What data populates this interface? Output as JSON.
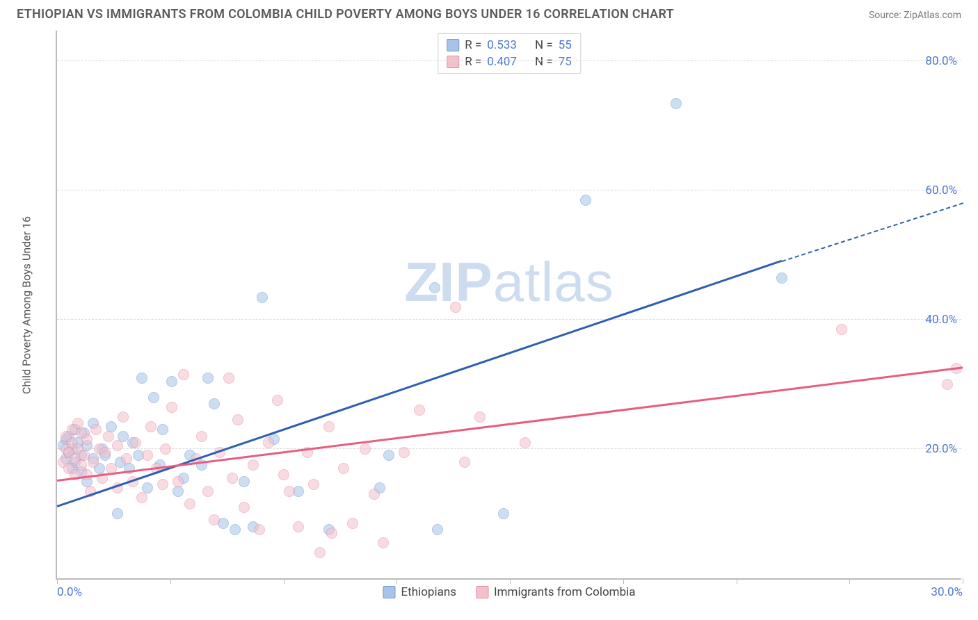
{
  "header": {
    "title": "ETHIOPIAN VS IMMIGRANTS FROM COLOMBIA CHILD POVERTY AMONG BOYS UNDER 16 CORRELATION CHART",
    "source": "Source: ZipAtlas.com"
  },
  "chart": {
    "type": "scatter",
    "y_axis_title": "Child Poverty Among Boys Under 16",
    "xlim": [
      0,
      30
    ],
    "ylim": [
      0,
      85
    ],
    "x_ticks": [
      0,
      3.75,
      7.5,
      11.25,
      15,
      18.75,
      22.5,
      26.25,
      30
    ],
    "x_tick_labels": {
      "0": "0.0%",
      "30": "30.0%"
    },
    "y_gridlines": [
      20,
      40,
      60,
      80
    ],
    "y_tick_labels": {
      "20": "20.0%",
      "40": "40.0%",
      "60": "60.0%",
      "80": "80.0%"
    },
    "background_color": "#ffffff",
    "grid_color": "#d9d9d9",
    "axis_color": "#bbbbbb",
    "tick_label_color": "#4a77d4",
    "tick_label_fontsize": 17,
    "axis_title_color": "#555555",
    "axis_title_fontsize": 16,
    "marker_radius": 8,
    "marker_opacity": 0.55,
    "watermark": "ZIPatlas",
    "series": [
      {
        "name": "Ethiopians",
        "fill": "#a7c4e8",
        "stroke": "#6f9ad0",
        "R": "0.533",
        "N": "55",
        "trend": {
          "color": "#2e5fb3",
          "x1": 0,
          "y1": 11,
          "x2": 24,
          "y2": 49,
          "dash_x2": 30,
          "dash_y2": 58
        },
        "points": [
          [
            0.2,
            20.5
          ],
          [
            0.3,
            18.5
          ],
          [
            0.3,
            21.5
          ],
          [
            0.4,
            19.5
          ],
          [
            0.4,
            22
          ],
          [
            0.5,
            17
          ],
          [
            0.5,
            20
          ],
          [
            0.6,
            18
          ],
          [
            0.6,
            23
          ],
          [
            0.7,
            21
          ],
          [
            0.8,
            16.5
          ],
          [
            0.8,
            19
          ],
          [
            0.9,
            22.5
          ],
          [
            1.0,
            15
          ],
          [
            1.0,
            20.5
          ],
          [
            1.2,
            18.5
          ],
          [
            1.2,
            24
          ],
          [
            1.4,
            17
          ],
          [
            1.5,
            20
          ],
          [
            1.6,
            19
          ],
          [
            1.8,
            23.5
          ],
          [
            2.0,
            10
          ],
          [
            2.1,
            18
          ],
          [
            2.2,
            22
          ],
          [
            2.4,
            17
          ],
          [
            2.5,
            21
          ],
          [
            2.7,
            19
          ],
          [
            2.8,
            31
          ],
          [
            3.0,
            14
          ],
          [
            3.2,
            28
          ],
          [
            3.4,
            17.5
          ],
          [
            3.5,
            23
          ],
          [
            3.8,
            30.5
          ],
          [
            4.0,
            13.5
          ],
          [
            4.2,
            15.5
          ],
          [
            4.4,
            19
          ],
          [
            4.8,
            17.5
          ],
          [
            5.0,
            31
          ],
          [
            5.2,
            27
          ],
          [
            5.5,
            8.5
          ],
          [
            5.9,
            7.5
          ],
          [
            6.2,
            15
          ],
          [
            6.5,
            8
          ],
          [
            6.8,
            43.5
          ],
          [
            7.2,
            21.5
          ],
          [
            8.0,
            13.5
          ],
          [
            9.0,
            7.5
          ],
          [
            10.7,
            14
          ],
          [
            11.0,
            19
          ],
          [
            12.5,
            45
          ],
          [
            12.6,
            7.5
          ],
          [
            14.8,
            10
          ],
          [
            17.5,
            58.5
          ],
          [
            20.5,
            73.5
          ],
          [
            24.0,
            46.5
          ]
        ]
      },
      {
        "name": "Immigrants from Colombia",
        "fill": "#f4c0cc",
        "stroke": "#e48da3",
        "R": "0.407",
        "N": "75",
        "trend": {
          "color": "#e85d7f",
          "x1": 0,
          "y1": 15,
          "x2": 30,
          "y2": 32.5,
          "dash_x2": null,
          "dash_y2": null
        },
        "points": [
          [
            0.2,
            18
          ],
          [
            0.3,
            20
          ],
          [
            0.3,
            22
          ],
          [
            0.4,
            17
          ],
          [
            0.4,
            19.5
          ],
          [
            0.5,
            21
          ],
          [
            0.5,
            23
          ],
          [
            0.6,
            16
          ],
          [
            0.6,
            18.5
          ],
          [
            0.7,
            24
          ],
          [
            0.7,
            20
          ],
          [
            0.8,
            17.5
          ],
          [
            0.8,
            22.5
          ],
          [
            0.9,
            19
          ],
          [
            1.0,
            16
          ],
          [
            1.0,
            21.5
          ],
          [
            1.1,
            13.5
          ],
          [
            1.2,
            18
          ],
          [
            1.3,
            23
          ],
          [
            1.4,
            20
          ],
          [
            1.5,
            15.5
          ],
          [
            1.6,
            19.5
          ],
          [
            1.7,
            22
          ],
          [
            1.8,
            17
          ],
          [
            2.0,
            14
          ],
          [
            2.0,
            20.5
          ],
          [
            2.2,
            25
          ],
          [
            2.3,
            18.5
          ],
          [
            2.5,
            15
          ],
          [
            2.6,
            21
          ],
          [
            2.8,
            12.5
          ],
          [
            3.0,
            19
          ],
          [
            3.1,
            23.5
          ],
          [
            3.3,
            17
          ],
          [
            3.5,
            14.5
          ],
          [
            3.6,
            20
          ],
          [
            3.8,
            26.5
          ],
          [
            4.0,
            15
          ],
          [
            4.2,
            31.5
          ],
          [
            4.4,
            11.5
          ],
          [
            4.6,
            18.5
          ],
          [
            4.8,
            22
          ],
          [
            5.0,
            13.5
          ],
          [
            5.2,
            9
          ],
          [
            5.4,
            19.5
          ],
          [
            5.7,
            31
          ],
          [
            5.8,
            15.5
          ],
          [
            6.0,
            24.5
          ],
          [
            6.2,
            11
          ],
          [
            6.5,
            17.5
          ],
          [
            6.7,
            7.5
          ],
          [
            7.0,
            21
          ],
          [
            7.3,
            27.5
          ],
          [
            7.5,
            16
          ],
          [
            7.7,
            13.5
          ],
          [
            8.0,
            8
          ],
          [
            8.3,
            19.5
          ],
          [
            8.5,
            14.5
          ],
          [
            8.7,
            4
          ],
          [
            9.0,
            23.5
          ],
          [
            9.1,
            7
          ],
          [
            9.5,
            17
          ],
          [
            9.8,
            8.5
          ],
          [
            10.2,
            20
          ],
          [
            10.5,
            13
          ],
          [
            10.8,
            5.5
          ],
          [
            11.5,
            19.5
          ],
          [
            12.0,
            26
          ],
          [
            13.2,
            42
          ],
          [
            13.5,
            18
          ],
          [
            14.0,
            25
          ],
          [
            15.5,
            21
          ],
          [
            26.0,
            38.5
          ],
          [
            29.5,
            30
          ],
          [
            29.8,
            32.5
          ]
        ]
      }
    ]
  },
  "legend_bottom": [
    {
      "label": "Ethiopians",
      "fill": "#a7c4e8",
      "stroke": "#6f9ad0"
    },
    {
      "label": "Immigrants from Colombia",
      "fill": "#f4c0cc",
      "stroke": "#e48da3"
    }
  ]
}
